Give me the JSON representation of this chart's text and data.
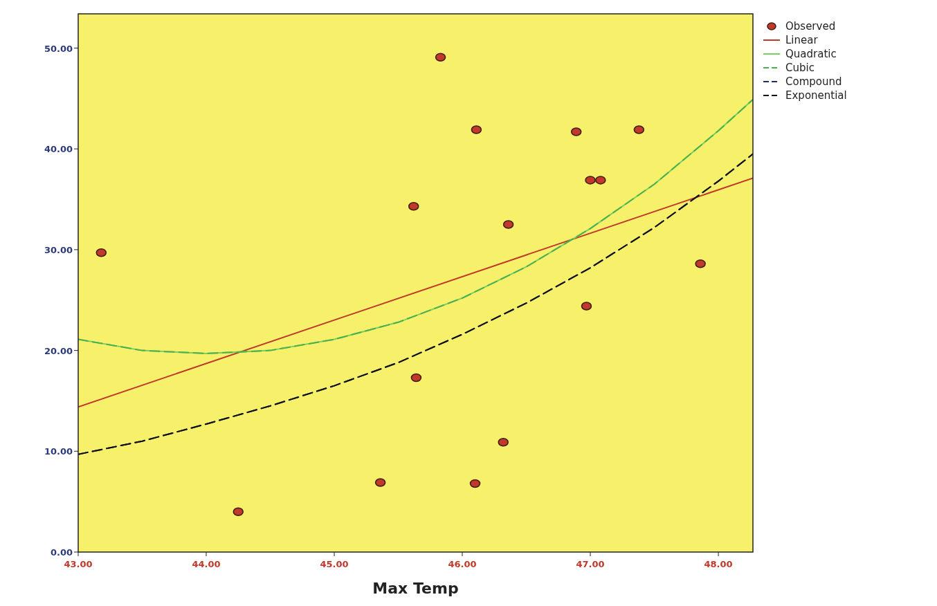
{
  "chart_data": {
    "type": "line",
    "xlabel": "Max Temp",
    "xlim": [
      43,
      48.27
    ],
    "ylim": [
      0,
      53.4
    ],
    "xticks": [
      {
        "value": 43,
        "label": "43.00"
      },
      {
        "value": 44,
        "label": "44.00"
      },
      {
        "value": 45,
        "label": "45.00"
      },
      {
        "value": 46,
        "label": "46.00"
      },
      {
        "value": 47,
        "label": "47.00"
      },
      {
        "value": 48,
        "label": "48.00"
      }
    ],
    "yticks": [
      {
        "value": 0,
        "label": "0.00"
      },
      {
        "value": 10,
        "label": "10.00"
      },
      {
        "value": 20,
        "label": "20.00"
      },
      {
        "value": 30,
        "label": "30.00"
      },
      {
        "value": 40,
        "label": "40.00"
      },
      {
        "value": 50,
        "label": "50.00"
      }
    ],
    "grid": false,
    "legend": "top right",
    "series": [
      {
        "name": "Observed",
        "type": "scatter",
        "color": "#c0392b",
        "marker": "circle",
        "x": [
          43.18,
          44.25,
          45.36,
          45.62,
          45.64,
          45.83,
          46.11,
          46.1,
          46.32,
          46.36,
          46.89,
          46.97,
          47.0,
          47.08,
          47.38,
          47.86
        ],
        "values": [
          29.7,
          4.0,
          6.9,
          34.3,
          17.3,
          49.1,
          41.9,
          6.8,
          10.9,
          32.5,
          41.7,
          24.4,
          36.9,
          36.9,
          41.9,
          28.6
        ]
      },
      {
        "name": "Linear",
        "color": "#c0392b",
        "line_style": "solid",
        "x": [
          43,
          48.27
        ],
        "values": [
          14.4,
          37.1
        ]
      },
      {
        "name": "Quadratic",
        "color": "#7ccf5a",
        "line_style": "solid",
        "x": [
          43,
          43.5,
          44,
          44.5,
          45,
          45.5,
          46,
          46.5,
          47,
          47.5,
          48,
          48.27
        ],
        "values": [
          21.1,
          20.0,
          19.7,
          20.0,
          21.1,
          22.8,
          25.2,
          28.3,
          32.1,
          36.5,
          41.8,
          44.9
        ]
      },
      {
        "name": "Cubic",
        "color": "#4caf50",
        "line_style": "dashed",
        "x": [
          43,
          43.5,
          44,
          44.5,
          45,
          45.5,
          46,
          46.5,
          47,
          47.5,
          48,
          48.27
        ],
        "values": [
          21.1,
          20.0,
          19.7,
          20.0,
          21.1,
          22.8,
          25.2,
          28.3,
          32.1,
          36.5,
          41.8,
          44.9
        ]
      },
      {
        "name": "Compound",
        "color": "#1f2a6b",
        "line_style": "dashed",
        "x": [
          43,
          43.5,
          44,
          44.5,
          45,
          45.5,
          46,
          46.5,
          47,
          47.5,
          48,
          48.27
        ],
        "values": [
          9.7,
          11.0,
          12.7,
          14.5,
          16.5,
          18.8,
          21.6,
          24.7,
          28.2,
          32.2,
          36.8,
          39.5
        ]
      },
      {
        "name": "Exponential",
        "color": "#111111",
        "line_style": "dashed",
        "x": [
          43,
          43.5,
          44,
          44.5,
          45,
          45.5,
          46,
          46.5,
          47,
          47.5,
          48,
          48.27
        ],
        "values": [
          9.7,
          11.0,
          12.7,
          14.5,
          16.5,
          18.8,
          21.6,
          24.7,
          28.2,
          32.2,
          36.8,
          39.5
        ]
      }
    ]
  }
}
